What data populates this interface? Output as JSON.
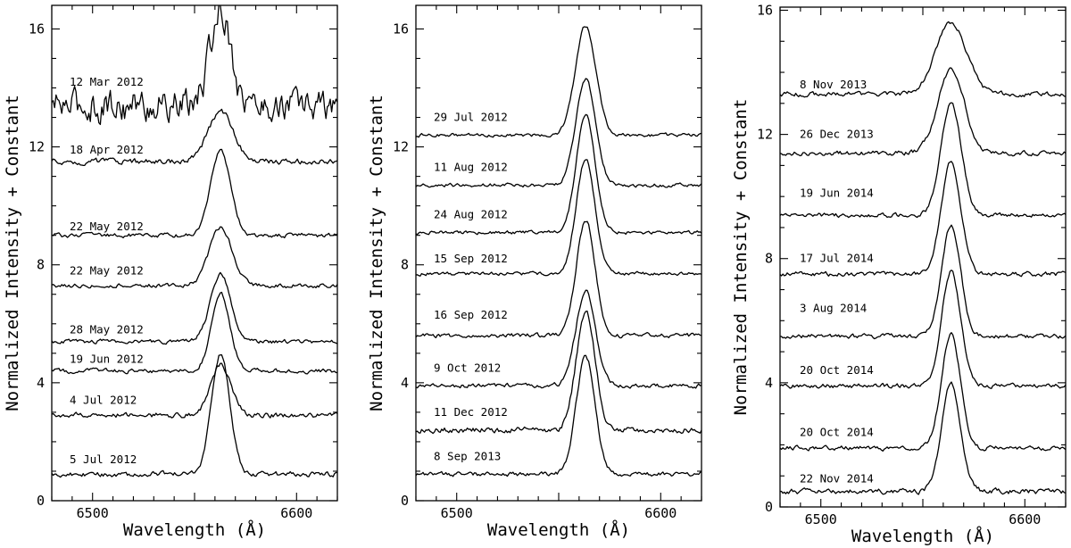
{
  "colors": {
    "ink": "#000000",
    "background": "#ffffff"
  },
  "chart_data": [
    {
      "type": "line",
      "panel": "left",
      "xlabel": "Wavelength (Å)",
      "ylabel": "Normalized Intensity + Constant",
      "xlim": [
        6480,
        6620
      ],
      "ylim": [
        0,
        16.8
      ],
      "xticks_labeled": [
        6500,
        6600
      ],
      "yticks_labeled": [
        0,
        4,
        8,
        12,
        16
      ],
      "line_center": 6562.8,
      "spectra": [
        {
          "label": "12 Mar 2012",
          "baseline": 13.4,
          "peak": 16.7,
          "width": 5.0,
          "noise": 0.45,
          "label_y": 14.2
        },
        {
          "label": "18 Apr 2012",
          "baseline": 11.5,
          "peak": 13.2,
          "width": 6.2,
          "noise": 0.08,
          "label_y": 11.9
        },
        {
          "label": "22 May 2012",
          "baseline": 9.0,
          "peak": 11.9,
          "width": 4.8,
          "noise": 0.06,
          "label_y": 9.3
        },
        {
          "label": "22 May 2012",
          "baseline": 7.3,
          "peak": 9.3,
          "width": 5.5,
          "noise": 0.06,
          "label_y": 7.8
        },
        {
          "label": "28 May 2012",
          "baseline": 5.4,
          "peak": 7.7,
          "width": 5.0,
          "noise": 0.06,
          "label_y": 5.8
        },
        {
          "label": "19 Jun 2012",
          "baseline": 4.4,
          "peak": 7.0,
          "width": 4.5,
          "noise": 0.06,
          "label_y": 4.8
        },
        {
          "label": "4 Jul 2012",
          "baseline": 2.9,
          "peak": 4.6,
          "width": 5.0,
          "noise": 0.07,
          "label_y": 3.4
        },
        {
          "label": "5 Jul 2012",
          "baseline": 0.9,
          "peak": 5.0,
          "width": 4.5,
          "noise": 0.07,
          "label_y": 1.4
        }
      ]
    },
    {
      "type": "line",
      "panel": "middle",
      "xlabel": "Wavelength (Å)",
      "ylabel": "Normalized Intensity + Constant",
      "xlim": [
        6480,
        6620
      ],
      "ylim": [
        0,
        16.8
      ],
      "xticks_labeled": [
        6500,
        6600
      ],
      "yticks_labeled": [
        0,
        4,
        8,
        12,
        16
      ],
      "line_center": 6563.2,
      "spectra": [
        {
          "label": "29 Jul 2012",
          "baseline": 12.4,
          "peak": 16.1,
          "width": 5.0,
          "noise": 0.05,
          "label_y": 13.0
        },
        {
          "label": "11 Aug 2012",
          "baseline": 10.7,
          "peak": 14.3,
          "width": 4.8,
          "noise": 0.05,
          "label_y": 11.3
        },
        {
          "label": "24 Aug 2012",
          "baseline": 9.1,
          "peak": 13.1,
          "width": 4.6,
          "noise": 0.05,
          "label_y": 9.7
        },
        {
          "label": "15 Sep 2012",
          "baseline": 7.7,
          "peak": 11.6,
          "width": 4.6,
          "noise": 0.05,
          "label_y": 8.2
        },
        {
          "label": "16 Sep 2012",
          "baseline": 5.6,
          "peak": 9.5,
          "width": 4.6,
          "noise": 0.06,
          "label_y": 6.3
        },
        {
          "label": "9 Oct 2012",
          "baseline": 3.9,
          "peak": 7.1,
          "width": 4.8,
          "noise": 0.06,
          "label_y": 4.5
        },
        {
          "label": "11 Dec 2012",
          "baseline": 2.4,
          "peak": 6.4,
          "width": 4.6,
          "noise": 0.08,
          "label_y": 3.0
        },
        {
          "label": "8 Sep 2013",
          "baseline": 0.9,
          "peak": 4.9,
          "width": 4.6,
          "noise": 0.06,
          "label_y": 1.5
        }
      ]
    },
    {
      "type": "line",
      "panel": "right",
      "xlabel": "Wavelength (Å)",
      "ylabel": "Normalized Intensity + Constant",
      "xlim": [
        6480,
        6620
      ],
      "ylim": [
        0,
        16.1
      ],
      "xticks_labeled": [
        6500,
        6600
      ],
      "yticks_labeled": [
        0,
        4,
        8,
        12,
        16
      ],
      "line_center": 6563.8,
      "spectra": [
        {
          "label": "8 Nov 2013",
          "baseline": 13.3,
          "peak": 15.6,
          "width": 7.5,
          "noise": 0.06,
          "label_y": 13.6
        },
        {
          "label": "26 Dec 2013",
          "baseline": 11.4,
          "peak": 14.1,
          "width": 6.5,
          "noise": 0.06,
          "label_y": 12.0
        },
        {
          "label": "19 Jun 2014",
          "baseline": 9.4,
          "peak": 13.0,
          "width": 5.0,
          "noise": 0.06,
          "label_y": 10.1
        },
        {
          "label": "17 Jul 2014",
          "baseline": 7.5,
          "peak": 11.1,
          "width": 4.8,
          "noise": 0.06,
          "label_y": 8.0
        },
        {
          "label": "3 Aug 2014",
          "baseline": 5.5,
          "peak": 9.1,
          "width": 4.6,
          "noise": 0.06,
          "label_y": 6.4
        },
        {
          "label": "20 Oct 2014",
          "baseline": 3.9,
          "peak": 7.6,
          "width": 4.6,
          "noise": 0.06,
          "label_y": 4.4
        },
        {
          "label": "20 Oct 2014",
          "baseline": 1.9,
          "peak": 5.6,
          "width": 4.6,
          "noise": 0.06,
          "label_y": 2.4
        },
        {
          "label": "22 Nov 2014",
          "baseline": 0.5,
          "peak": 4.0,
          "width": 4.6,
          "noise": 0.07,
          "label_y": 0.9
        }
      ]
    }
  ]
}
